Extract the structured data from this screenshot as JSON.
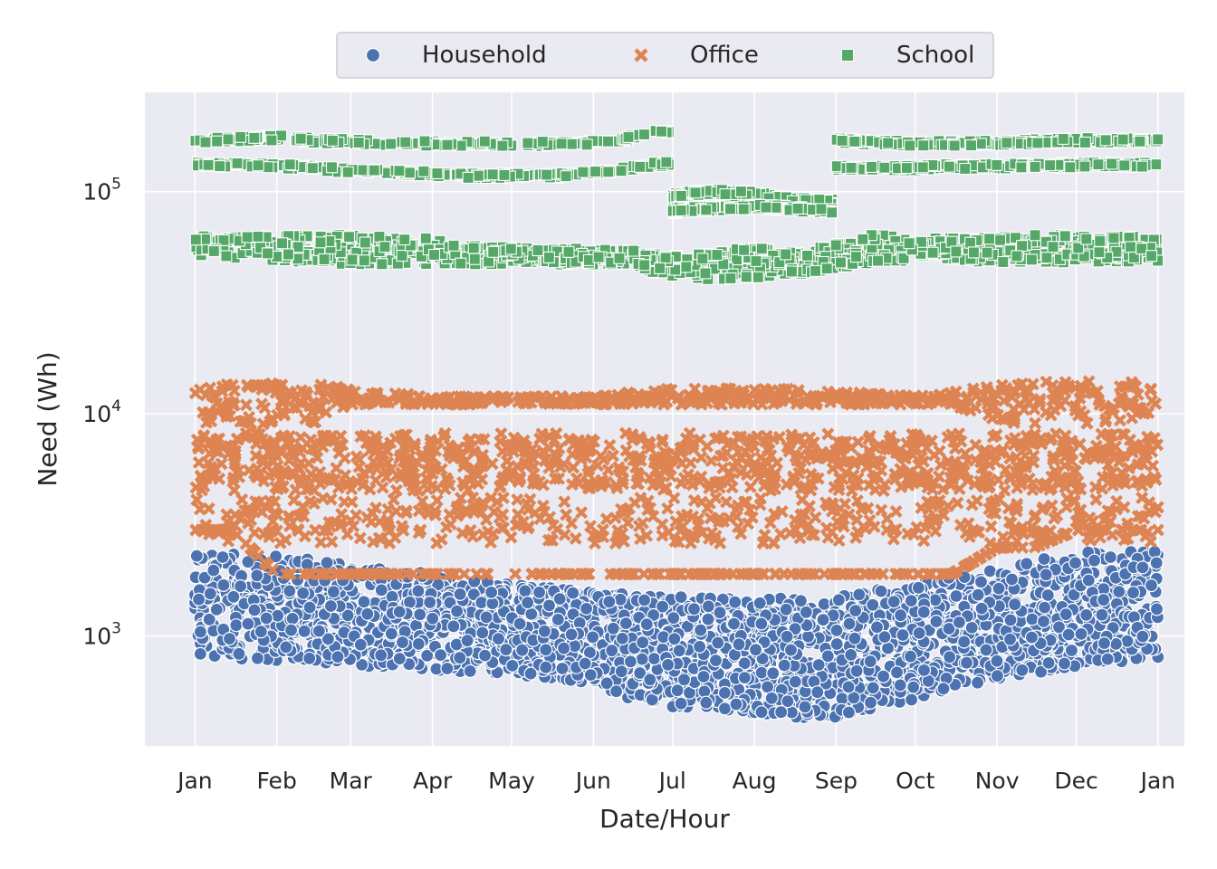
{
  "chart_data": {
    "type": "scatter",
    "xlabel": "Date/Hour",
    "ylabel": "Need (Wh)",
    "yscale": "log",
    "ylim": [
      320,
      280000
    ],
    "xlim": [
      "2021-12-13",
      "2023-01-11"
    ],
    "grid": true,
    "legend_position": "top-center",
    "x_tick_labels": [
      {
        "date": "2022-01-01",
        "label": "Jan"
      },
      {
        "date": "2022-02-01",
        "label": "Feb"
      },
      {
        "date": "2022-03-01",
        "label": "Mar"
      },
      {
        "date": "2022-04-01",
        "label": "Apr"
      },
      {
        "date": "2022-05-01",
        "label": "May"
      },
      {
        "date": "2022-06-01",
        "label": "Jun"
      },
      {
        "date": "2022-07-01",
        "label": "Jul"
      },
      {
        "date": "2022-08-01",
        "label": "Aug"
      },
      {
        "date": "2022-09-01",
        "label": "Sep"
      },
      {
        "date": "2022-10-01",
        "label": "Oct"
      },
      {
        "date": "2022-11-01",
        "label": "Nov"
      },
      {
        "date": "2022-12-01",
        "label": "Dec"
      },
      {
        "date": "2023-01-01",
        "label": "Jan"
      }
    ],
    "y_ticks": [
      {
        "value": 1000,
        "base": "10",
        "exp": "3"
      },
      {
        "value": 10000,
        "base": "10",
        "exp": "4"
      },
      {
        "value": 100000,
        "base": "10",
        "exp": "5"
      }
    ],
    "series": [
      {
        "name": "Household",
        "marker": "circle",
        "color": "#4c72b0",
        "x": [
          "2022-01-01",
          "2022-01-15",
          "2022-02-01",
          "2022-02-15",
          "2022-03-01",
          "2022-03-15",
          "2022-04-01",
          "2022-04-15",
          "2022-05-01",
          "2022-05-15",
          "2022-06-01",
          "2022-06-15",
          "2022-07-01",
          "2022-07-15",
          "2022-08-01",
          "2022-08-15",
          "2022-09-01",
          "2022-09-15",
          "2022-10-01",
          "2022-10-15",
          "2022-11-01",
          "2022-11-15",
          "2022-12-01",
          "2022-12-15",
          "2023-01-01"
        ],
        "y_min": [
          820,
          780,
          760,
          750,
          730,
          720,
          700,
          690,
          670,
          650,
          600,
          520,
          480,
          470,
          450,
          430,
          430,
          470,
          520,
          580,
          640,
          680,
          720,
          760,
          800
        ],
        "y_max": [
          2400,
          2350,
          2300,
          2200,
          2100,
          2000,
          1900,
          1800,
          1700,
          1650,
          1600,
          1550,
          1500,
          1500,
          1480,
          1480,
          1500,
          1600,
          1700,
          1850,
          2000,
          2200,
          2350,
          2450,
          2400
        ]
      },
      {
        "name": "Office",
        "marker": "x",
        "color": "#dd8452",
        "x": [
          "2022-01-01",
          "2022-01-15",
          "2022-02-01",
          "2022-02-15",
          "2022-03-01",
          "2022-03-15",
          "2022-04-01",
          "2022-04-15",
          "2022-05-01",
          "2022-05-15",
          "2022-06-01",
          "2022-06-15",
          "2022-07-01",
          "2022-07-15",
          "2022-08-01",
          "2022-08-15",
          "2022-09-01",
          "2022-09-15",
          "2022-10-01",
          "2022-10-15",
          "2022-11-01",
          "2022-11-15",
          "2022-12-01",
          "2022-12-15",
          "2023-01-01"
        ],
        "y_min": [
          3000,
          3000,
          1900,
          1900,
          1900,
          1900,
          1900,
          1900,
          1900,
          1900,
          1900,
          1900,
          1900,
          1900,
          1900,
          1900,
          1900,
          1900,
          1900,
          1900,
          2500,
          2500,
          3000,
          3000,
          3000
        ],
        "y_max": [
          14000,
          14000,
          14000,
          14000,
          13000,
          12500,
          12000,
          12000,
          12000,
          12000,
          12000,
          12500,
          13000,
          13000,
          13000,
          13000,
          12500,
          12500,
          12000,
          12500,
          14000,
          14000,
          14000,
          14000,
          14000
        ],
        "upper_band_min": [
          9000,
          9000,
          9000,
          9000,
          11000,
          11000,
          11000,
          11000,
          11000,
          11000,
          11000,
          11000,
          11000,
          11000,
          11000,
          11000,
          11000,
          11000,
          11000,
          11000,
          9000,
          9000,
          9000,
          9000,
          9000
        ]
      },
      {
        "name": "School",
        "marker": "square",
        "color": "#55a868",
        "x": [
          "2022-01-01",
          "2022-01-15",
          "2022-02-01",
          "2022-02-15",
          "2022-03-01",
          "2022-03-15",
          "2022-04-01",
          "2022-04-15",
          "2022-05-01",
          "2022-05-15",
          "2022-06-01",
          "2022-06-15",
          "2022-07-01",
          "2022-07-15",
          "2022-08-01",
          "2022-08-15",
          "2022-09-01",
          "2022-09-15",
          "2022-10-01",
          "2022-10-15",
          "2022-11-01",
          "2022-11-15",
          "2022-12-01",
          "2022-12-15",
          "2023-01-01"
        ],
        "levels": [
          {
            "x_range": [
              "2022-01-01",
              "2022-06-30"
            ],
            "y": [
              170000,
              172000,
              175000,
              170000,
              168000,
              166000,
              165000,
              165000,
              164000,
              164000,
              166000,
              175000,
              190000,
              null,
              null,
              null,
              null,
              null,
              null,
              null,
              null,
              null,
              null,
              null,
              null
            ]
          },
          {
            "x_range": [
              "2022-01-01",
              "2022-06-30"
            ],
            "y": [
              132000,
              132000,
              130000,
              128000,
              124000,
              122000,
              120000,
              118000,
              118000,
              118000,
              120000,
              128000,
              135000,
              null,
              null,
              null,
              null,
              null,
              null,
              null,
              null,
              null,
              null,
              null,
              null
            ]
          },
          {
            "x_range": [
              "2022-07-01",
              "2022-08-31"
            ],
            "y": [
              null,
              null,
              null,
              null,
              null,
              null,
              null,
              null,
              null,
              null,
              null,
              null,
              96000,
              100000,
              98000,
              92000,
              90000,
              null,
              null,
              null,
              null,
              null,
              null,
              null,
              null
            ]
          },
          {
            "x_range": [
              "2022-07-01",
              "2022-08-31"
            ],
            "y": [
              null,
              null,
              null,
              null,
              null,
              null,
              null,
              null,
              null,
              null,
              null,
              null,
              82000,
              84000,
              86000,
              84000,
              82000,
              null,
              null,
              null,
              null,
              null,
              null,
              null,
              null
            ]
          },
          {
            "x_range": [
              "2022-09-01",
              "2023-01-01"
            ],
            "y": [
              null,
              null,
              null,
              null,
              null,
              null,
              null,
              null,
              null,
              null,
              null,
              null,
              null,
              null,
              null,
              null,
              170000,
              166000,
              165000,
              165000,
              166000,
              168000,
              170000,
              170000,
              170000
            ]
          },
          {
            "x_range": [
              "2022-09-01",
              "2023-01-01"
            ],
            "y": [
              null,
              null,
              null,
              null,
              null,
              null,
              null,
              null,
              null,
              null,
              null,
              null,
              null,
              null,
              null,
              null,
              128000,
              128000,
              128000,
              130000,
              130000,
              131000,
              132000,
              132000,
              132000
            ]
          }
        ],
        "low_band_min": [
          50000,
          50000,
          48000,
          48000,
          47000,
          47000,
          47000,
          47000,
          47000,
          47000,
          47000,
          47000,
          40000,
          40000,
          41000,
          42000,
          45000,
          48000,
          48000,
          48000,
          48000,
          48000,
          48000,
          48000,
          48000
        ],
        "low_band_max": [
          63000,
          64000,
          64000,
          64000,
          64000,
          63000,
          62000,
          58000,
          56000,
          56000,
          55000,
          55000,
          52000,
          54000,
          56000,
          54000,
          58000,
          64000,
          62000,
          62000,
          64000,
          64000,
          64000,
          64000,
          62000
        ]
      }
    ]
  }
}
